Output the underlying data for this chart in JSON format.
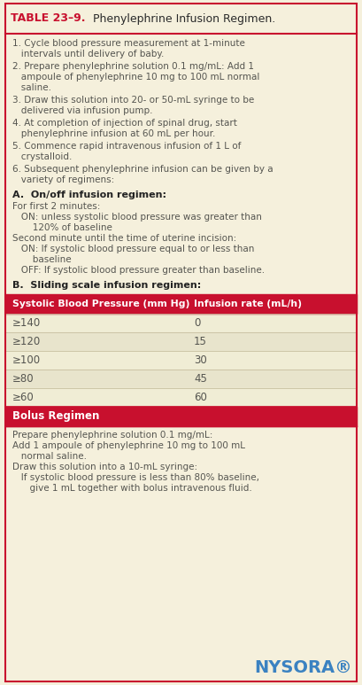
{
  "title_bold": "TABLE 23–9.",
  "title_regular": "  Phenylephrine Infusion Regimen.",
  "bg_color": "#f5f0dc",
  "header_bg": "#c8102e",
  "header_text_color": "#ffffff",
  "border_color": "#c8102e",
  "body_text_color": "#555550",
  "numbered_items": [
    [
      "1.",
      " Cycle blood pressure measurement at 1-minute\n   intervals until delivery of baby."
    ],
    [
      "2.",
      " Prepare phenylephrine solution 0.1 mg/mL: Add 1\n   ampoule of phenylephrine 10 mg to 100 mL normal\n   saline."
    ],
    [
      "3.",
      " Draw this solution into 20- or 50-mL syringe to be\n   delivered via infusion pump."
    ],
    [
      "4.",
      " At completion of injection of spinal drug, start\n   phenylephrine infusion at 60 mL per hour."
    ],
    [
      "5.",
      " Commence rapid intravenous infusion of 1 L of\n   crystalloid."
    ],
    [
      "6.",
      " Subsequent phenylephrine infusion can be given by a\n   variety of regimens:"
    ]
  ],
  "section_a_title": "A.  On/off infusion regimen:",
  "section_a_lines": [
    "For first 2 minutes:",
    "   ON: unless systolic blood pressure was greater than",
    "       120% of baseline",
    "Second minute until the time of uterine incision:",
    "   ON: If systolic blood pressure equal to or less than",
    "       baseline",
    "   OFF: If systolic blood pressure greater than baseline."
  ],
  "section_b_title": "B.  Sliding scale infusion regimen:",
  "table_header": [
    "Systolic Blood Pressure (mm Hg)",
    "Infusion rate (mL/h)"
  ],
  "table_rows": [
    [
      "≥140",
      "0"
    ],
    [
      "≥120",
      "15"
    ],
    [
      "≥100",
      "30"
    ],
    [
      "≥80",
      "45"
    ],
    [
      "≥60",
      "60"
    ]
  ],
  "bolus_title": "Bolus Regimen",
  "bolus_lines": [
    "Prepare phenylephrine solution 0.1 mg/mL:",
    "Add 1 ampoule of phenylephrine 10 mg to 100 mL",
    "   normal saline.",
    "Draw this solution into a 10-mL syringe:",
    "   If systolic blood pressure is less than 80% baseline,",
    "      give 1 mL together with bolus intravenous fluid."
  ],
  "nysora_text": "NYSORA",
  "figsize": [
    4.09,
    7.73
  ],
  "dpi": 100
}
